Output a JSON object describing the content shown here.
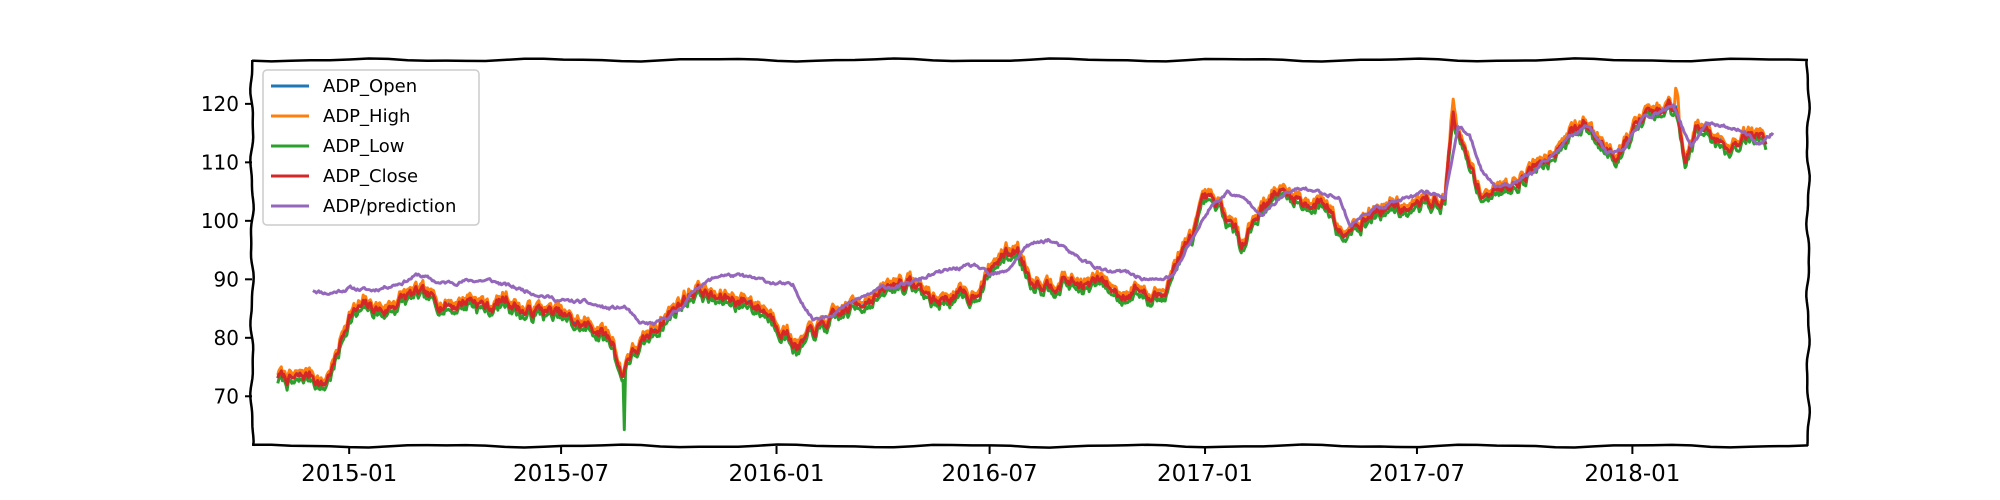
{
  "chart_data": {
    "type": "line",
    "title": "",
    "xlabel": "",
    "ylabel": "",
    "xlim": [
      "2014-10-10",
      "2018-05-31"
    ],
    "ylim": [
      61.5,
      127.5
    ],
    "grid": false,
    "legend_position": "top-left",
    "yticks": [
      70,
      80,
      90,
      100,
      110,
      120
    ],
    "xticks": [
      "2015-01-01",
      "2015-07-01",
      "2016-01-01",
      "2016-07-01",
      "2017-01-01",
      "2017-07-01",
      "2018-01-01"
    ],
    "xtick_labels": [
      "2015-01",
      "2015-07",
      "2016-01",
      "2016-07",
      "2017-01",
      "2017-07",
      "2018-01"
    ],
    "close": {
      "dates": [
        "2014-11-01",
        "2014-11-15",
        "2014-11-30",
        "2014-12-10",
        "2014-12-20",
        "2015-01-01",
        "2015-01-15",
        "2015-02-01",
        "2015-02-15",
        "2015-03-01",
        "2015-03-15",
        "2015-04-01",
        "2015-04-15",
        "2015-05-01",
        "2015-05-15",
        "2015-06-01",
        "2015-06-15",
        "2015-07-01",
        "2015-07-15",
        "2015-08-01",
        "2015-08-15",
        "2015-08-22",
        "2015-08-27",
        "2015-09-10",
        "2015-09-25",
        "2015-10-10",
        "2015-10-25",
        "2015-11-10",
        "2015-11-25",
        "2015-12-10",
        "2015-12-25",
        "2016-01-10",
        "2016-01-20",
        "2016-02-01",
        "2016-02-15",
        "2016-03-01",
        "2016-03-15",
        "2016-04-01",
        "2016-04-15",
        "2016-05-01",
        "2016-05-15",
        "2016-06-01",
        "2016-06-15",
        "2016-06-25",
        "2016-07-10",
        "2016-07-25",
        "2016-08-05",
        "2016-08-20",
        "2016-09-05",
        "2016-09-20",
        "2016-10-05",
        "2016-10-20",
        "2016-11-05",
        "2016-11-15",
        "2016-11-25",
        "2016-12-05",
        "2016-12-20",
        "2017-01-01",
        "2017-01-15",
        "2017-02-01",
        "2017-02-15",
        "2017-03-01",
        "2017-03-15",
        "2017-04-01",
        "2017-04-15",
        "2017-04-25",
        "2017-05-10",
        "2017-05-25",
        "2017-06-10",
        "2017-06-25",
        "2017-07-10",
        "2017-07-25",
        "2017-08-01",
        "2017-08-05",
        "2017-08-15",
        "2017-08-25",
        "2017-09-05",
        "2017-09-20",
        "2017-10-05",
        "2017-10-20",
        "2017-11-05",
        "2017-11-20",
        "2017-12-05",
        "2017-12-20",
        "2018-01-05",
        "2018-01-15",
        "2018-01-25",
        "2018-02-01",
        "2018-02-08",
        "2018-02-15",
        "2018-02-25",
        "2018-03-05",
        "2018-03-15",
        "2018-03-25",
        "2018-04-05",
        "2018-04-15",
        "2018-04-25"
      ],
      "values": [
        73.5,
        72.7,
        73.8,
        71.8,
        76,
        84,
        85.3,
        84.6,
        86.8,
        87.5,
        86.2,
        85.6,
        86.8,
        85.1,
        86.7,
        84.3,
        84.8,
        83.8,
        82.3,
        81.5,
        79.1,
        73.2,
        76.9,
        79,
        83,
        85.8,
        88.6,
        86.6,
        86.7,
        86.1,
        84.3,
        80.8,
        78.2,
        81,
        82.7,
        84.7,
        86.6,
        87.7,
        89.7,
        88.8,
        86.2,
        87.3,
        86.8,
        89.6,
        93.8,
        95.1,
        90.2,
        89.4,
        89.9,
        88.8,
        89.8,
        87.2,
        88.7,
        86.5,
        87.2,
        92,
        96.8,
        103.4,
        101.8,
        96.4,
        101.6,
        104.8,
        104.3,
        102.8,
        103.2,
        98.6,
        99.8,
        101.4,
        102.8,
        101.7,
        103.5,
        103.6,
        119.5,
        115,
        109,
        105,
        104.8,
        106.5,
        108.6,
        111,
        114.6,
        116.4,
        113.4,
        111.8,
        116.5,
        118.7,
        117.8,
        119.6,
        118.2,
        109,
        116,
        115.6,
        114,
        112.4,
        114.8,
        114.6,
        114.5
      ]
    },
    "prediction": {
      "dates": [
        "2014-12-01",
        "2014-12-15",
        "2015-01-01",
        "2015-01-20",
        "2015-02-15",
        "2015-03-01",
        "2015-03-20",
        "2015-04-15",
        "2015-05-01",
        "2015-05-20",
        "2015-06-10",
        "2015-07-01",
        "2015-07-20",
        "2015-08-10",
        "2015-08-25",
        "2015-09-05",
        "2015-09-20",
        "2015-10-10",
        "2015-10-25",
        "2015-11-15",
        "2015-12-05",
        "2015-12-25",
        "2016-01-15",
        "2016-02-01",
        "2016-02-20",
        "2016-03-10",
        "2016-04-01",
        "2016-04-20",
        "2016-05-10",
        "2016-06-01",
        "2016-06-20",
        "2016-07-01",
        "2016-07-15",
        "2016-08-01",
        "2016-08-20",
        "2016-09-10",
        "2016-09-25",
        "2016-10-10",
        "2016-10-25",
        "2016-11-10",
        "2016-11-20",
        "2016-12-05",
        "2016-12-20",
        "2017-01-05",
        "2017-01-20",
        "2017-02-05",
        "2017-02-20",
        "2017-03-10",
        "2017-03-25",
        "2017-04-10",
        "2017-04-25",
        "2017-05-05",
        "2017-05-20",
        "2017-06-10",
        "2017-06-25",
        "2017-07-10",
        "2017-07-25",
        "2017-08-05",
        "2017-08-15",
        "2017-08-25",
        "2017-09-05",
        "2017-09-20",
        "2017-10-10",
        "2017-10-25",
        "2017-11-10",
        "2017-11-25",
        "2017-12-10",
        "2017-12-25",
        "2018-01-10",
        "2018-01-25",
        "2018-02-05",
        "2018-02-20",
        "2018-03-05",
        "2018-03-20",
        "2018-04-05",
        "2018-04-20",
        "2018-05-01"
      ],
      "values": [
        88.2,
        87.6,
        88.5,
        88.1,
        89.5,
        90.8,
        89.3,
        89.8,
        89.8,
        88.7,
        87.6,
        86.3,
        86.1,
        85,
        85.2,
        82.5,
        82.3,
        84.8,
        88.7,
        90.8,
        90.4,
        89.6,
        88.8,
        83.2,
        84.4,
        86.5,
        88.6,
        89,
        90.6,
        91.8,
        92.3,
        90.6,
        91.2,
        95.6,
        96.8,
        94.3,
        92.6,
        91.2,
        91.2,
        90.1,
        89.8,
        90.6,
        96.6,
        102.2,
        104.9,
        103.5,
        101.2,
        104.5,
        105.6,
        104.8,
        104.2,
        99.2,
        101.5,
        103.2,
        103.9,
        104.9,
        104.2,
        116,
        114.5,
        109,
        106,
        106.4,
        108.5,
        111.2,
        114.8,
        116.5,
        111.8,
        112.4,
        117.5,
        118.6,
        119.9,
        112.3,
        116.8,
        116.1,
        115.4,
        113.1,
        115.1
      ]
    },
    "series": [
      {
        "name": "ADP_Open",
        "color": "#1f77b4"
      },
      {
        "name": "ADP_High",
        "color": "#ff7f0e"
      },
      {
        "name": "ADP_Low",
        "color": "#2ca02c"
      },
      {
        "name": "ADP_Close",
        "color": "#d62728"
      },
      {
        "name": "ADP/prediction",
        "color": "#9467bd"
      }
    ]
  }
}
